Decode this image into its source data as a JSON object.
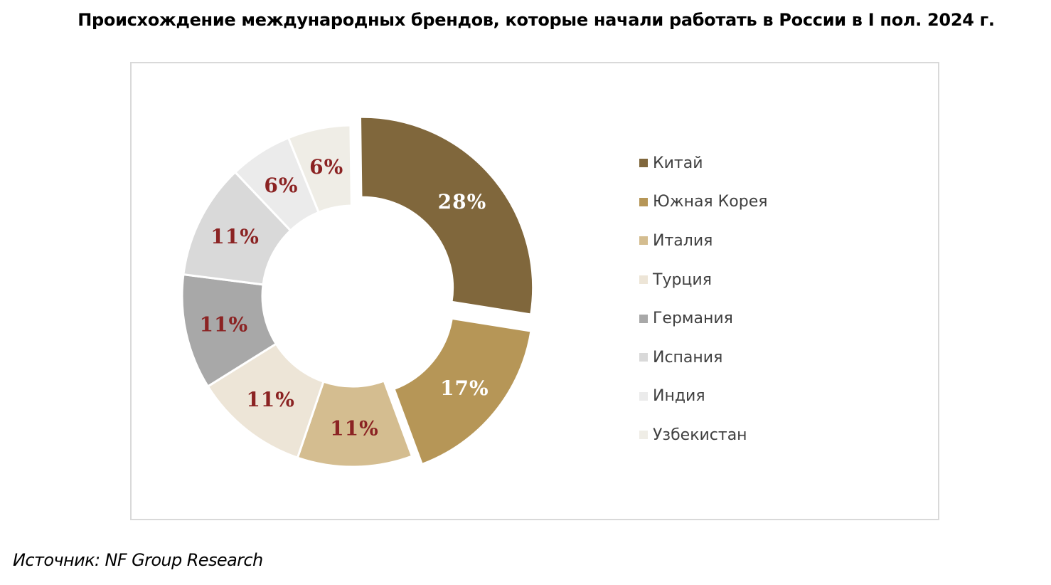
{
  "title": "Происхождение международных брендов, которые начали работать в России в I пол. 2024 г.",
  "source": "Источник: NF Group Research",
  "chart_data": {
    "type": "pie",
    "style": "donut",
    "title": "Происхождение международных брендов, которые начали работать в России в I пол. 2024 г.",
    "legend_position": "right",
    "categories": [
      "Китай",
      "Южная Корея",
      "Италия",
      "Турция",
      "Германия",
      "Испания",
      "Индия",
      "Узбекистан"
    ],
    "values": [
      28,
      17,
      11,
      11,
      11,
      11,
      6,
      6
    ],
    "labels": [
      "28%",
      "17%",
      "11%",
      "11%",
      "11%",
      "11%",
      "6%",
      "6%"
    ],
    "colors": [
      "#80673c",
      "#b69657",
      "#d4bd90",
      "#ede5d7",
      "#a8a8a8",
      "#d9d9d9",
      "#ebebeb",
      "#efede6"
    ],
    "label_colors": [
      "#ffffff",
      "#ffffff",
      "#8b2323",
      "#8b2323",
      "#8b2323",
      "#8b2323",
      "#8b2323",
      "#8b2323"
    ],
    "exploded": [
      "Китай",
      "Южная Корея"
    ]
  }
}
